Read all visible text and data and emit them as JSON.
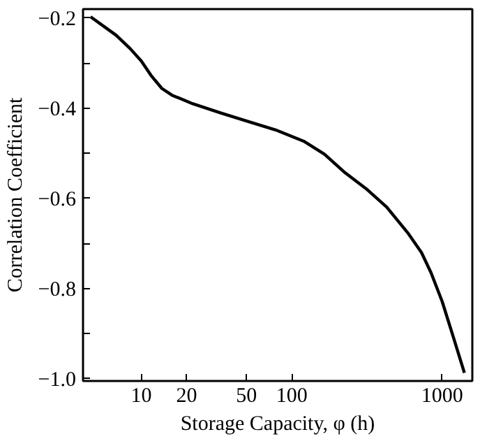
{
  "chart_data": {
    "type": "line",
    "xlabel": "Storage Capacity, φ (h)",
    "ylabel": "Correlation Coefficient",
    "log": "x",
    "x": [
      4.6,
      6.8,
      8.4,
      10,
      11.6,
      13.7,
      16,
      22,
      33.5,
      51,
      78,
      120,
      165,
      226,
      311,
      427,
      589,
      728,
      843,
      1000,
      1186,
      1404
    ],
    "series": [
      {
        "color": "#000000",
        "values": [
          -0.197,
          -0.238,
          -0.267,
          -0.295,
          -0.327,
          -0.356,
          -0.371,
          -0.39,
          -0.41,
          -0.429,
          -0.448,
          -0.473,
          -0.502,
          -0.543,
          -0.578,
          -0.619,
          -0.676,
          -0.72,
          -0.765,
          -0.829,
          -0.908,
          -0.987
        ]
      }
    ],
    "xlim": [
      4.1,
      1585
    ],
    "ylim": [
      -1.005,
      -0.18
    ],
    "xticks": [
      10,
      20,
      50,
      100,
      1000
    ],
    "yticks": [
      {
        "value": -1.0,
        "label": "−1.0"
      },
      {
        "value": -0.9,
        "label": null
      },
      {
        "value": -0.8,
        "label": "−0.8"
      },
      {
        "value": -0.7,
        "label": null
      },
      {
        "value": -0.6,
        "label": "−0.6"
      },
      {
        "value": -0.5,
        "label": null
      },
      {
        "value": -0.4,
        "label": "−0.4"
      },
      {
        "value": -0.3,
        "label": null
      },
      {
        "value": -0.2,
        "label": "−0.2"
      }
    ],
    "grid": false,
    "marker": "none",
    "line_style": "solid"
  }
}
